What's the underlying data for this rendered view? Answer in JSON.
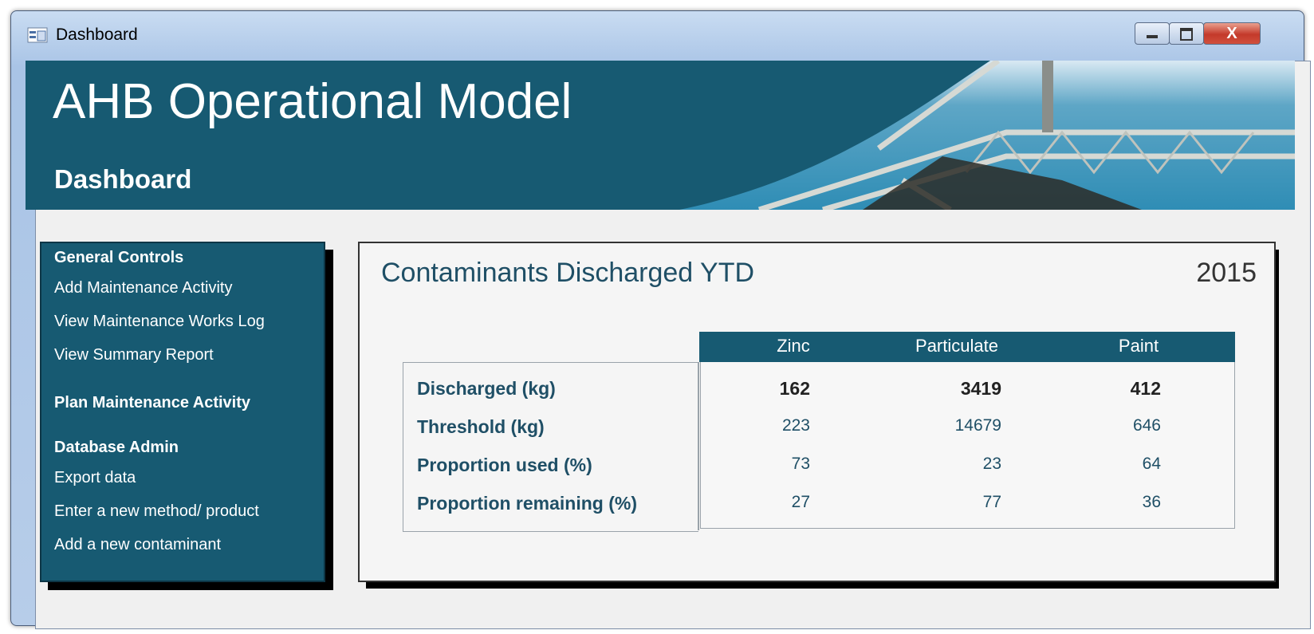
{
  "window": {
    "title": "Dashboard"
  },
  "header": {
    "title": "AHB Operational Model",
    "subtitle": "Dashboard"
  },
  "nav": {
    "sections": [
      {
        "heading": "General Controls",
        "items": [
          "Add Maintenance Activity",
          "View Maintenance Works Log",
          "View Summary Report"
        ]
      },
      {
        "heading": "Plan Maintenance Activity",
        "items": []
      },
      {
        "heading": "Database Admin",
        "items": [
          "Export data",
          "Enter a new method/ product",
          "Add a new contaminant"
        ]
      }
    ]
  },
  "panel": {
    "title": "Contaminants Discharged YTD",
    "year": 2015,
    "table": {
      "columns": [
        "Zinc",
        "Particulate",
        "Paint"
      ],
      "rows": [
        {
          "label": "Discharged (kg)",
          "values": [
            162,
            3419,
            412
          ]
        },
        {
          "label": "Threshold (kg)",
          "values": [
            223,
            14679,
            646
          ]
        },
        {
          "label": "Proportion used (%)",
          "values": [
            73,
            23,
            64
          ]
        },
        {
          "label": "Proportion remaining (%)",
          "values": [
            27,
            77,
            36
          ]
        }
      ]
    }
  }
}
